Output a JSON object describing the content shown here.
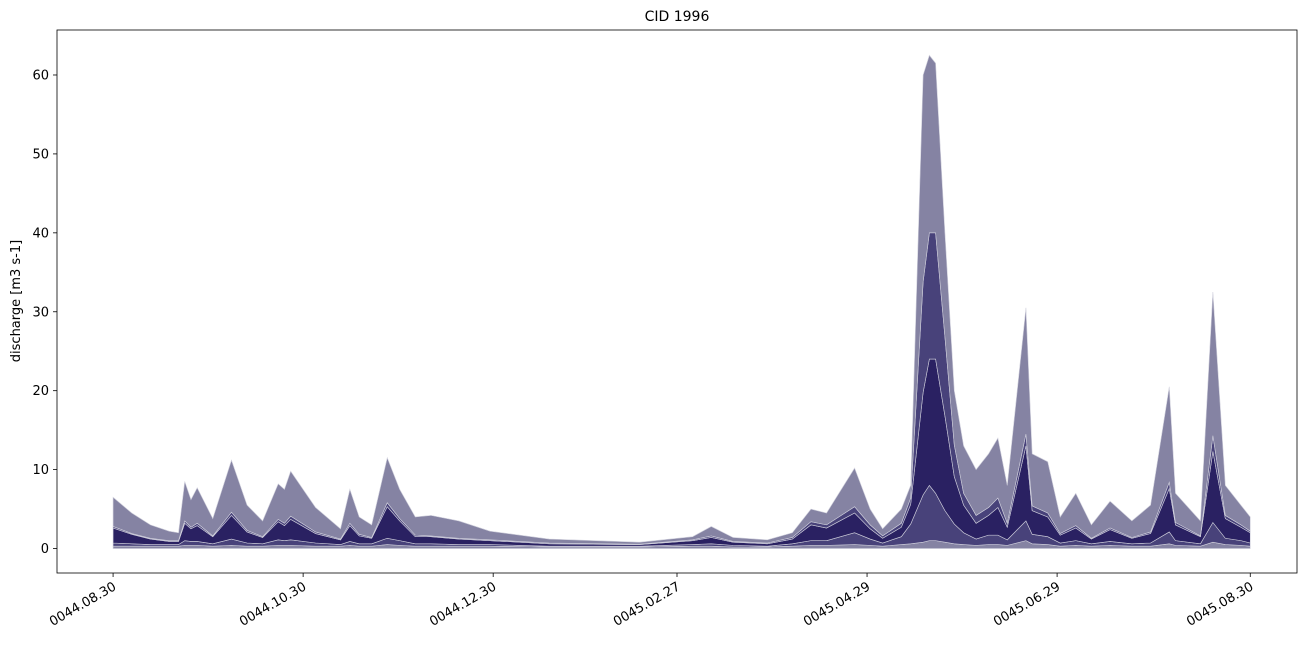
{
  "chart_data": {
    "type": "stacked_area",
    "title": "CID 1996",
    "ylabel": "discharge [m3 s-1]",
    "x": [
      "0044.08.30",
      "0044.09.05",
      "0044.09.11",
      "0044.09.17",
      "0044.09.20",
      "0044.09.22",
      "0044.09.24",
      "0044.09.26",
      "0044.10.01",
      "0044.10.07",
      "0044.10.12",
      "0044.10.17",
      "0044.10.22",
      "0044.10.24",
      "0044.10.26",
      "0044.11.03",
      "0044.11.11",
      "0044.11.14",
      "0044.11.17",
      "0044.11.21",
      "0044.11.26",
      "0044.11.30",
      "0044.12.05",
      "0044.12.10",
      "0044.12.19",
      "0044.12.29",
      "0045.01.17",
      "0045.02.15",
      "0045.03.04",
      "0045.03.10",
      "0045.03.17",
      "0045.03.28",
      "0045.04.05",
      "0045.04.11",
      "0045.04.16",
      "0045.04.25",
      "0045.04.30",
      "0045.05.04",
      "0045.05.10",
      "0045.05.13",
      "0045.05.17",
      "0045.05.19",
      "0045.05.21",
      "0045.05.24",
      "0045.05.27",
      "0045.05.30",
      "0045.06.03",
      "0045.06.07",
      "0045.06.10",
      "0045.06.13",
      "0045.06.19",
      "0045.06.21",
      "0045.06.26",
      "0045.06.30",
      "0045.07.05",
      "0045.07.10",
      "0045.07.16",
      "0045.07.23",
      "0045.07.29",
      "0045.08.04",
      "0045.08.06",
      "0045.08.14",
      "0045.08.18",
      "0045.08.22",
      "0045.08.27",
      "0045.08.30"
    ],
    "series": [
      {
        "color": "#8583a3",
        "values": [
          0.3,
          0.3,
          0.3,
          0.3,
          0.3,
          0.4,
          0.4,
          0.4,
          0.3,
          0.4,
          0.3,
          0.3,
          0.4,
          0.4,
          0.4,
          0.3,
          0.3,
          0.4,
          0.3,
          0.3,
          0.5,
          0.4,
          0.3,
          0.3,
          0.3,
          0.3,
          0.2,
          0.2,
          0.3,
          0.3,
          0.2,
          0.2,
          0.3,
          0.4,
          0.4,
          0.5,
          0.4,
          0.3,
          0.5,
          0.6,
          0.8,
          1.0,
          1.0,
          0.8,
          0.6,
          0.5,
          0.4,
          0.5,
          0.5,
          0.4,
          1.0,
          0.6,
          0.5,
          0.3,
          0.4,
          0.3,
          0.4,
          0.3,
          0.3,
          0.6,
          0.4,
          0.3,
          0.8,
          0.5,
          0.4,
          0.3
        ]
      },
      {
        "color": "#48427a",
        "values": [
          0.4,
          0.3,
          0.2,
          0.2,
          0.2,
          0.6,
          0.5,
          0.5,
          0.3,
          0.8,
          0.4,
          0.3,
          0.7,
          0.6,
          0.7,
          0.4,
          0.2,
          0.5,
          0.3,
          0.3,
          0.8,
          0.6,
          0.3,
          0.3,
          0.2,
          0.2,
          0.1,
          0.1,
          0.2,
          0.3,
          0.2,
          0.1,
          0.3,
          0.6,
          0.6,
          1.5,
          0.8,
          0.4,
          1.0,
          2.5,
          6.0,
          7.0,
          6.0,
          4.0,
          2.5,
          1.5,
          0.8,
          1.2,
          1.2,
          0.7,
          2.5,
          1.2,
          1.0,
          0.4,
          0.6,
          0.3,
          0.5,
          0.3,
          0.4,
          1.5,
          0.6,
          0.3,
          2.5,
          0.8,
          0.6,
          0.4
        ]
      },
      {
        "color": "#2a2162",
        "values": [
          1.9,
          1.2,
          0.7,
          0.4,
          0.4,
          2.2,
          1.6,
          2.0,
          0.9,
          3.0,
          1.4,
          0.8,
          2.3,
          1.9,
          2.6,
          1.2,
          0.6,
          2.0,
          1.0,
          0.7,
          4.0,
          2.5,
          0.9,
          0.9,
          0.7,
          0.5,
          0.3,
          0.2,
          0.5,
          0.8,
          0.4,
          0.3,
          0.6,
          2.0,
          1.6,
          2.5,
          1.3,
          0.6,
          1.2,
          2.5,
          13.0,
          16.0,
          17.0,
          12.0,
          6.0,
          3.5,
          2.0,
          2.5,
          3.5,
          1.6,
          9.5,
          3.0,
          2.5,
          1.0,
          1.6,
          0.6,
          1.5,
          0.7,
          1.2,
          5.5,
          2.0,
          0.9,
          9.0,
          2.5,
          1.7,
          1.3
        ]
      },
      {
        "color": "#48427a",
        "values": [
          0.2,
          0.1,
          0.1,
          0.1,
          0.1,
          0.3,
          0.2,
          0.3,
          0.1,
          0.4,
          0.2,
          0.1,
          0.3,
          0.3,
          0.4,
          0.2,
          0.1,
          0.3,
          0.2,
          0.1,
          0.5,
          0.3,
          0.2,
          0.1,
          0.1,
          0.1,
          0.1,
          0.05,
          0.1,
          0.2,
          0.1,
          0.1,
          0.2,
          0.4,
          0.4,
          0.8,
          0.5,
          0.3,
          0.5,
          0.8,
          14.0,
          16.0,
          16.0,
          10.0,
          4.0,
          1.5,
          1.0,
          1.0,
          1.2,
          0.5,
          1.5,
          0.6,
          0.5,
          0.2,
          0.3,
          0.1,
          0.2,
          0.1,
          0.2,
          0.8,
          0.3,
          0.1,
          2.0,
          0.4,
          0.3,
          0.2
        ]
      },
      {
        "color": "#8583a3",
        "values": [
          3.7,
          2.6,
          1.7,
          1.2,
          1.0,
          5.0,
          3.5,
          4.5,
          2.2,
          6.6,
          3.2,
          2.0,
          4.5,
          4.3,
          5.7,
          3.1,
          1.3,
          4.3,
          2.2,
          1.6,
          5.7,
          3.7,
          2.3,
          2.6,
          2.2,
          1.1,
          0.5,
          0.25,
          0.4,
          1.2,
          0.5,
          0.4,
          0.6,
          1.6,
          1.5,
          4.9,
          2.0,
          0.9,
          1.8,
          1.6,
          26.2,
          22.5,
          21.5,
          13.2,
          6.9,
          6.0,
          5.8,
          6.8,
          7.6,
          4.8,
          16.0,
          6.6,
          6.5,
          2.1,
          4.1,
          1.7,
          3.4,
          2.1,
          3.4,
          12.1,
          3.7,
          1.9,
          18.2,
          3.8,
          2.5,
          1.8
        ]
      }
    ],
    "xlim": [
      "0044.08.12",
      "0045.09.14"
    ],
    "xticks": [
      "0044.08.30",
      "0044.10.30",
      "0044.12.30",
      "0045.02.27",
      "0045.04.29",
      "0045.06.29",
      "0045.08.30"
    ],
    "ylim": [
      -3.1,
      65.7
    ],
    "yticks": [
      0,
      10,
      20,
      30,
      40,
      50,
      60
    ]
  }
}
